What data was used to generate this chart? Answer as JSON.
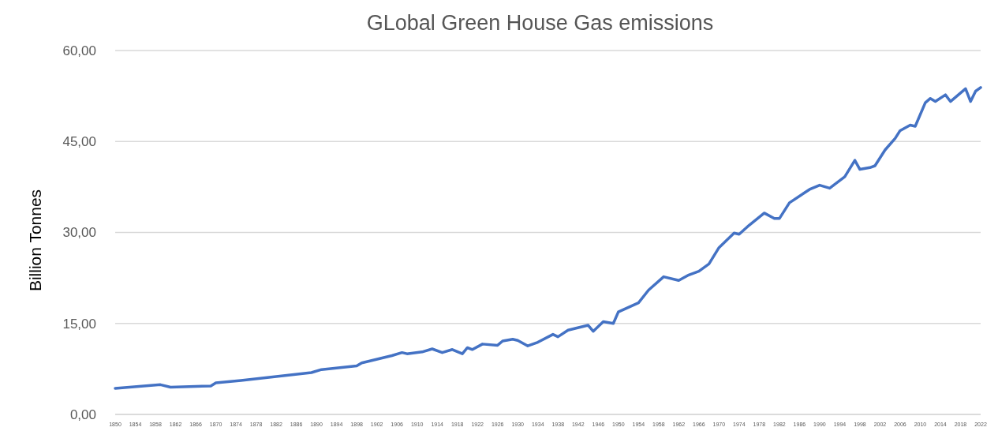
{
  "chart_data": {
    "type": "line",
    "title": "GLobal Green House Gas emissions",
    "ylabel": "Billion Tonnes",
    "xlim": [
      1850,
      2022
    ],
    "xticks": [
      1850,
      1854,
      1858,
      1862,
      1866,
      1870,
      1874,
      1878,
      1882,
      1886,
      1890,
      1894,
      1898,
      1902,
      1906,
      1910,
      1914,
      1918,
      1922,
      1926,
      1930,
      1934,
      1938,
      1942,
      1946,
      1950,
      1954,
      1958,
      1962,
      1966,
      1970,
      1974,
      1978,
      1982,
      1986,
      1990,
      1994,
      1998,
      2002,
      2006,
      2010,
      2014,
      2018,
      2022
    ],
    "ylim": [
      0,
      60
    ],
    "yticks": [
      {
        "value": 0,
        "label": "0,00"
      },
      {
        "value": 15,
        "label": "15,00"
      },
      {
        "value": 30,
        "label": "30,00"
      },
      {
        "value": 45,
        "label": "45,00"
      },
      {
        "value": 60,
        "label": "60,00"
      }
    ],
    "grid": "y",
    "series": [
      {
        "color": "#4472c4",
        "x": [
          1850,
          1859,
          1861,
          1869,
          1870,
          1875,
          1889,
          1891,
          1898,
          1899,
          1905,
          1907,
          1908,
          1911,
          1913,
          1915,
          1917,
          1919,
          1920,
          1921,
          1923,
          1926,
          1927,
          1929,
          1930,
          1932,
          1934,
          1937,
          1938,
          1940,
          1944,
          1945,
          1947,
          1949,
          1950,
          1954,
          1956,
          1959,
          1962,
          1964,
          1966,
          1968,
          1970,
          1973,
          1974,
          1976,
          1979,
          1981,
          1982,
          1984,
          1988,
          1990,
          1992,
          1995,
          1997,
          1998,
          2000,
          2001,
          2003,
          2005,
          2006,
          2008,
          2009,
          2011,
          2012,
          2013,
          2015,
          2016,
          2019,
          2020,
          2021,
          2022
        ],
        "values": [
          4.3,
          4.9,
          4.5,
          4.7,
          5.2,
          5.6,
          6.9,
          7.4,
          8.0,
          8.5,
          9.7,
          10.2,
          10.0,
          10.3,
          10.8,
          10.2,
          10.7,
          10.0,
          11.0,
          10.7,
          11.6,
          11.4,
          12.1,
          12.4,
          12.2,
          11.3,
          11.9,
          13.2,
          12.8,
          13.9,
          14.7,
          13.7,
          15.3,
          15.0,
          16.9,
          18.4,
          20.5,
          22.7,
          22.1,
          23.0,
          23.6,
          24.8,
          27.5,
          29.9,
          29.7,
          31.2,
          33.2,
          32.3,
          32.3,
          34.9,
          37.1,
          37.8,
          37.3,
          39.2,
          41.9,
          40.4,
          40.7,
          41.0,
          43.6,
          45.5,
          46.8,
          47.7,
          47.5,
          51.4,
          52.1,
          51.6,
          52.7,
          51.6,
          53.7,
          51.6,
          53.3,
          53.9
        ]
      }
    ]
  }
}
